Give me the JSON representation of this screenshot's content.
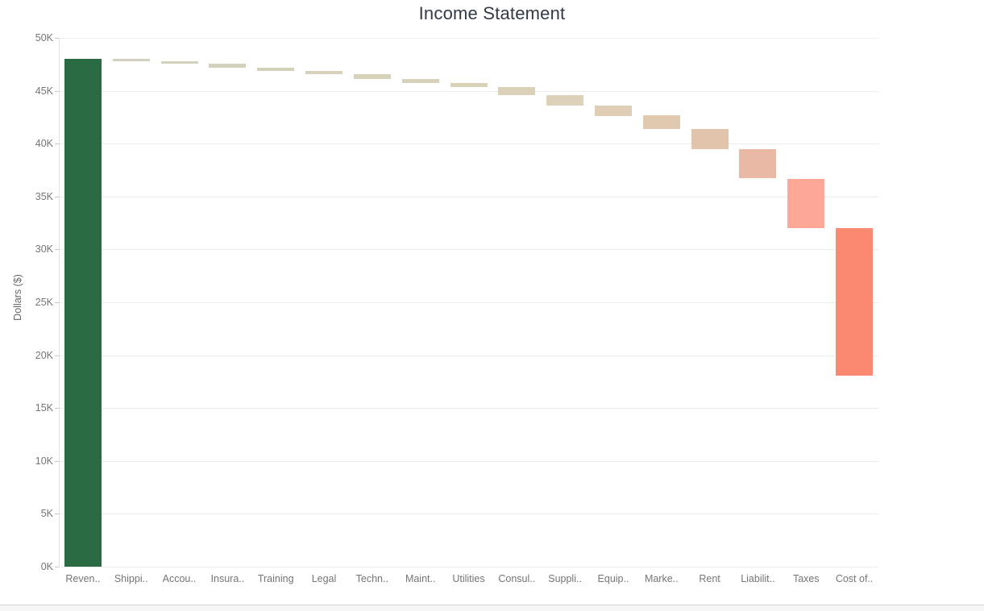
{
  "title": "Income Statement",
  "y_axis": {
    "label": "Dollars ($)",
    "tick_labels": [
      "0K",
      "5K",
      "10K",
      "15K",
      "20K",
      "25K",
      "30K",
      "35K",
      "40K",
      "45K",
      "50K"
    ],
    "min": 0,
    "max": 50000,
    "tick_step": 5000
  },
  "chart_data": {
    "type": "bar",
    "subtype": "waterfall",
    "title": "Income Statement",
    "xlabel": "",
    "ylabel": "Dollars ($)",
    "ylim": [
      0,
      50000
    ],
    "grid": true,
    "legend": false,
    "categories": [
      "Reven..",
      "Shippi..",
      "Accou..",
      "Insura..",
      "Training",
      "Legal",
      "Techn..",
      "Maint..",
      "Utilities",
      "Consul..",
      "Suppli..",
      "Equip..",
      "Marke..",
      "Rent",
      "Liabilit..",
      "Taxes",
      "Cost of.."
    ],
    "bars": [
      {
        "label": "Reven..",
        "start": 0,
        "end": 48000,
        "delta": 48000,
        "color": "#2b6b44"
      },
      {
        "label": "Shippi..",
        "start": 48000,
        "end": 47800,
        "delta": -200,
        "color": "#d2d1bd"
      },
      {
        "label": "Accou..",
        "start": 47800,
        "end": 47550,
        "delta": -250,
        "color": "#d3d1bc"
      },
      {
        "label": "Insura..",
        "start": 47550,
        "end": 47200,
        "delta": -350,
        "color": "#d3d1bb"
      },
      {
        "label": "Training",
        "start": 47200,
        "end": 46900,
        "delta": -300,
        "color": "#d4d1bb"
      },
      {
        "label": "Legal",
        "start": 46900,
        "end": 46600,
        "delta": -300,
        "color": "#d5d1ba"
      },
      {
        "label": "Techn..",
        "start": 46600,
        "end": 46100,
        "delta": -500,
        "color": "#d6d1b9"
      },
      {
        "label": "Maint..",
        "start": 46100,
        "end": 45700,
        "delta": -400,
        "color": "#d7d1b9"
      },
      {
        "label": "Utilities",
        "start": 45700,
        "end": 45350,
        "delta": -350,
        "color": "#d9d1b8"
      },
      {
        "label": "Consul..",
        "start": 45350,
        "end": 44600,
        "delta": -750,
        "color": "#dbd1b8"
      },
      {
        "label": "Suppli..",
        "start": 44600,
        "end": 43600,
        "delta": -1000,
        "color": "#ddd1ba"
      },
      {
        "label": "Equip..",
        "start": 43600,
        "end": 42650,
        "delta": -950,
        "color": "#dfceb5"
      },
      {
        "label": "Marke..",
        "start": 42650,
        "end": 41400,
        "delta": -1250,
        "color": "#e0c9af"
      },
      {
        "label": "Rent",
        "start": 41400,
        "end": 39500,
        "delta": -1900,
        "color": "#e2c3ac"
      },
      {
        "label": "Liabilit..",
        "start": 39500,
        "end": 36700,
        "delta": -2800,
        "color": "#eab9a5"
      },
      {
        "label": "Taxes",
        "start": 36700,
        "end": 32000,
        "delta": -4700,
        "color": "#fda797"
      },
      {
        "label": "Cost of..",
        "start": 32000,
        "end": 18100,
        "delta": -13900,
        "color": "#f98a70"
      }
    ]
  }
}
